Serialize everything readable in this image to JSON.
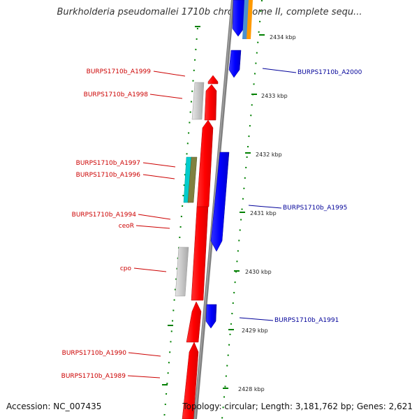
{
  "title": "Burkholderia pseudomallei 1710b chromosome II, complete sequ...",
  "accession": "Accession: NC_007435",
  "summary": "Topology: circular; Length: 3,181,762 bp; Genes: 2,621",
  "colors": {
    "forward_gene": "#ff0000",
    "reverse_gene": "#0000ff",
    "grey_feature": "#c8c8c8",
    "cyan_feature": "#00cccc",
    "olive_feature": "#808040",
    "orange_feature": "#ff9900",
    "steelblue_feature": "#4a90d0",
    "left_label": "#cc0000",
    "right_label": "#000099",
    "tick": "#008000",
    "backbone": "#808080"
  },
  "tick_labels": [
    "2434 kbp",
    "2433 kbp",
    "2432 kbp",
    "2431 kbp",
    "2430 kbp",
    "2429 kbp",
    "2428 kbp"
  ],
  "left_genes": [
    "BURPS1710b_A1999",
    "BURPS1710b_A1998",
    "BURPS1710b_A1997",
    "BURPS1710b_A1996",
    "BURPS1710b_A1994",
    "ceoR",
    "cpo",
    "BURPS1710b_A1990",
    "BURPS1710b_A1989"
  ],
  "right_genes": [
    "BURPS1710b_A2000",
    "BURPS1710b_A1995",
    "BURPS1710b_A1991"
  ]
}
